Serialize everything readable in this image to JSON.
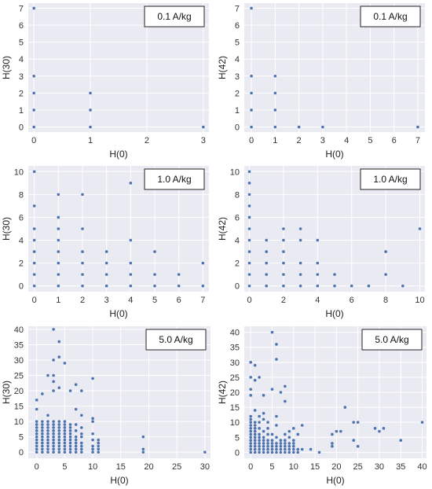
{
  "chart_data": [
    {
      "type": "scatter",
      "title": "0.1 A/kg",
      "xlabel": "H(0)",
      "ylabel": "H(30)",
      "xlim": [
        -0.1,
        3.1
      ],
      "ylim": [
        -0.3,
        7.3
      ],
      "xticks": [
        0,
        1,
        2,
        3
      ],
      "yticks": [
        0,
        1,
        2,
        3,
        4,
        5,
        6,
        7
      ],
      "grid": true,
      "legend_position": "top-right",
      "points": [
        [
          0,
          0
        ],
        [
          0,
          1
        ],
        [
          0,
          2
        ],
        [
          0,
          3
        ],
        [
          0,
          7
        ],
        [
          1,
          0
        ],
        [
          1,
          1
        ],
        [
          1,
          2
        ],
        [
          3,
          0
        ]
      ]
    },
    {
      "type": "scatter",
      "title": "0.1 A/kg",
      "xlabel": "H(0)",
      "ylabel": "H(42)",
      "xlim": [
        -0.3,
        7.3
      ],
      "ylim": [
        -0.3,
        7.3
      ],
      "xticks": [
        0,
        1,
        2,
        3,
        4,
        5,
        6,
        7
      ],
      "yticks": [
        0,
        1,
        2,
        3,
        4,
        5,
        6,
        7
      ],
      "grid": true,
      "legend_position": "top-right",
      "points": [
        [
          0,
          0
        ],
        [
          0,
          1
        ],
        [
          0,
          2
        ],
        [
          0,
          3
        ],
        [
          0,
          7
        ],
        [
          1,
          0
        ],
        [
          1,
          1
        ],
        [
          1,
          2
        ],
        [
          1,
          3
        ],
        [
          2,
          0
        ],
        [
          3,
          0
        ],
        [
          7,
          0
        ]
      ]
    },
    {
      "type": "scatter",
      "title": "1.0 A/kg",
      "xlabel": "H(0)",
      "ylabel": "H(30)",
      "xlim": [
        -0.25,
        7.25
      ],
      "ylim": [
        -0.5,
        10.5
      ],
      "xticks": [
        0,
        1,
        2,
        3,
        4,
        5,
        6,
        7
      ],
      "yticks": [
        0,
        2,
        4,
        6,
        8,
        10
      ],
      "grid": true,
      "legend_position": "top-right",
      "points": [
        [
          0,
          0
        ],
        [
          0,
          1
        ],
        [
          0,
          2
        ],
        [
          0,
          3
        ],
        [
          0,
          4
        ],
        [
          0,
          5
        ],
        [
          0,
          7
        ],
        [
          0,
          10
        ],
        [
          1,
          0
        ],
        [
          1,
          1
        ],
        [
          1,
          2
        ],
        [
          1,
          3
        ],
        [
          1,
          4
        ],
        [
          1,
          5
        ],
        [
          1,
          6
        ],
        [
          1,
          8
        ],
        [
          2,
          0
        ],
        [
          2,
          1
        ],
        [
          2,
          2
        ],
        [
          2,
          3
        ],
        [
          2,
          5
        ],
        [
          2,
          8
        ],
        [
          3,
          0
        ],
        [
          3,
          1
        ],
        [
          3,
          2
        ],
        [
          3,
          3
        ],
        [
          4,
          0
        ],
        [
          4,
          1
        ],
        [
          4,
          2
        ],
        [
          4,
          4
        ],
        [
          4,
          9
        ],
        [
          5,
          0
        ],
        [
          5,
          1
        ],
        [
          5,
          3
        ],
        [
          6,
          0
        ],
        [
          6,
          1
        ],
        [
          7,
          0
        ],
        [
          7,
          2
        ]
      ]
    },
    {
      "type": "scatter",
      "title": "1.0 A/kg",
      "xlabel": "H(0)",
      "ylabel": "H(42)",
      "xlim": [
        -0.3,
        10.3
      ],
      "ylim": [
        -0.5,
        10.5
      ],
      "xticks": [
        0,
        2,
        4,
        6,
        8,
        10
      ],
      "yticks": [
        0,
        2,
        4,
        6,
        8,
        10
      ],
      "grid": true,
      "legend_position": "top-right",
      "points": [
        [
          0,
          0
        ],
        [
          0,
          1
        ],
        [
          0,
          2
        ],
        [
          0,
          3
        ],
        [
          0,
          4
        ],
        [
          0,
          5
        ],
        [
          0,
          6
        ],
        [
          0,
          7
        ],
        [
          0,
          8
        ],
        [
          0,
          9
        ],
        [
          0,
          10
        ],
        [
          1,
          0
        ],
        [
          1,
          1
        ],
        [
          1,
          2
        ],
        [
          1,
          3
        ],
        [
          1,
          4
        ],
        [
          2,
          0
        ],
        [
          2,
          1
        ],
        [
          2,
          2
        ],
        [
          2,
          3
        ],
        [
          2,
          4
        ],
        [
          2,
          5
        ],
        [
          3,
          0
        ],
        [
          3,
          1
        ],
        [
          3,
          2
        ],
        [
          3,
          4
        ],
        [
          3,
          5
        ],
        [
          4,
          0
        ],
        [
          4,
          1
        ],
        [
          4,
          2
        ],
        [
          4,
          4
        ],
        [
          5,
          0
        ],
        [
          5,
          1
        ],
        [
          6,
          0
        ],
        [
          7,
          0
        ],
        [
          8,
          1
        ],
        [
          8,
          3
        ],
        [
          9,
          0
        ],
        [
          10,
          5
        ]
      ]
    },
    {
      "type": "scatter",
      "title": "5.0 A/kg",
      "xlabel": "H(0)",
      "ylabel": "H(30)",
      "xlim": [
        -1.5,
        31
      ],
      "ylim": [
        -2,
        41
      ],
      "xticks": [
        0,
        5,
        10,
        15,
        20,
        25,
        30
      ],
      "yticks": [
        0,
        5,
        10,
        15,
        20,
        25,
        30,
        35,
        40
      ],
      "grid": true,
      "legend_position": "top-right",
      "points": [
        [
          0,
          0
        ],
        [
          0,
          1
        ],
        [
          0,
          2
        ],
        [
          0,
          3
        ],
        [
          0,
          4
        ],
        [
          0,
          5
        ],
        [
          0,
          6
        ],
        [
          0,
          7
        ],
        [
          0,
          8
        ],
        [
          0,
          9
        ],
        [
          0,
          10
        ],
        [
          0,
          14
        ],
        [
          0,
          17
        ],
        [
          1,
          0
        ],
        [
          1,
          1
        ],
        [
          1,
          2
        ],
        [
          1,
          3
        ],
        [
          1,
          4
        ],
        [
          1,
          5
        ],
        [
          1,
          6
        ],
        [
          1,
          7
        ],
        [
          1,
          8
        ],
        [
          1,
          9
        ],
        [
          1,
          10
        ],
        [
          1,
          19
        ],
        [
          2,
          0
        ],
        [
          2,
          1
        ],
        [
          2,
          2
        ],
        [
          2,
          3
        ],
        [
          2,
          4
        ],
        [
          2,
          5
        ],
        [
          2,
          6
        ],
        [
          2,
          7
        ],
        [
          2,
          8
        ],
        [
          2,
          9
        ],
        [
          2,
          10
        ],
        [
          2,
          12
        ],
        [
          2,
          25
        ],
        [
          3,
          0
        ],
        [
          3,
          1
        ],
        [
          3,
          2
        ],
        [
          3,
          3
        ],
        [
          3,
          4
        ],
        [
          3,
          5
        ],
        [
          3,
          6
        ],
        [
          3,
          7
        ],
        [
          3,
          8
        ],
        [
          3,
          9
        ],
        [
          3,
          10
        ],
        [
          3,
          20
        ],
        [
          3,
          23
        ],
        [
          3,
          25
        ],
        [
          3,
          30
        ],
        [
          3,
          40
        ],
        [
          4,
          0
        ],
        [
          4,
          1
        ],
        [
          4,
          2
        ],
        [
          4,
          3
        ],
        [
          4,
          4
        ],
        [
          4,
          5
        ],
        [
          4,
          6
        ],
        [
          4,
          7
        ],
        [
          4,
          8
        ],
        [
          4,
          9
        ],
        [
          4,
          10
        ],
        [
          4,
          21
        ],
        [
          4,
          31
        ],
        [
          4,
          36
        ],
        [
          5,
          0
        ],
        [
          5,
          1
        ],
        [
          5,
          2
        ],
        [
          5,
          3
        ],
        [
          5,
          4
        ],
        [
          5,
          5
        ],
        [
          5,
          6
        ],
        [
          5,
          7
        ],
        [
          5,
          8
        ],
        [
          5,
          9
        ],
        [
          5,
          10
        ],
        [
          5,
          29
        ],
        [
          6,
          0
        ],
        [
          6,
          1
        ],
        [
          6,
          2
        ],
        [
          6,
          3
        ],
        [
          6,
          4
        ],
        [
          6,
          5
        ],
        [
          6,
          6
        ],
        [
          6,
          7
        ],
        [
          6,
          8
        ],
        [
          6,
          9
        ],
        [
          6,
          20
        ],
        [
          7,
          0
        ],
        [
          7,
          1
        ],
        [
          7,
          2
        ],
        [
          7,
          3
        ],
        [
          7,
          4
        ],
        [
          7,
          5
        ],
        [
          7,
          7
        ],
        [
          7,
          9
        ],
        [
          7,
          14
        ],
        [
          7,
          22
        ],
        [
          8,
          0
        ],
        [
          8,
          1
        ],
        [
          8,
          2
        ],
        [
          8,
          3
        ],
        [
          8,
          5
        ],
        [
          8,
          6
        ],
        [
          8,
          8
        ],
        [
          8,
          12
        ],
        [
          8,
          20
        ],
        [
          10,
          0
        ],
        [
          10,
          1
        ],
        [
          10,
          2
        ],
        [
          10,
          4
        ],
        [
          10,
          6
        ],
        [
          10,
          10
        ],
        [
          10,
          11
        ],
        [
          10,
          24
        ],
        [
          11,
          0
        ],
        [
          11,
          1
        ],
        [
          11,
          2
        ],
        [
          11,
          3
        ],
        [
          11,
          4
        ],
        [
          19,
          0
        ],
        [
          19,
          1
        ],
        [
          19,
          5
        ],
        [
          30,
          0
        ]
      ]
    },
    {
      "type": "scatter",
      "title": "5.0 A/kg",
      "xlabel": "H(0)",
      "ylabel": "H(42)",
      "xlim": [
        -1.5,
        41
      ],
      "ylim": [
        -2,
        42
      ],
      "xticks": [
        0,
        5,
        10,
        15,
        20,
        25,
        30,
        35,
        40
      ],
      "yticks": [
        0,
        5,
        10,
        15,
        20,
        25,
        30,
        35,
        40
      ],
      "grid": true,
      "legend_position": "top-right",
      "points": [
        [
          0,
          0
        ],
        [
          0,
          1
        ],
        [
          0,
          2
        ],
        [
          0,
          3
        ],
        [
          0,
          4
        ],
        [
          0,
          5
        ],
        [
          0,
          6
        ],
        [
          0,
          7
        ],
        [
          0,
          8
        ],
        [
          0,
          9
        ],
        [
          0,
          10
        ],
        [
          0,
          11
        ],
        [
          0,
          12
        ],
        [
          0,
          19
        ],
        [
          0,
          21
        ],
        [
          0,
          25
        ],
        [
          0,
          30
        ],
        [
          1,
          0
        ],
        [
          1,
          1
        ],
        [
          1,
          2
        ],
        [
          1,
          3
        ],
        [
          1,
          4
        ],
        [
          1,
          5
        ],
        [
          1,
          6
        ],
        [
          1,
          7
        ],
        [
          1,
          8
        ],
        [
          1,
          9
        ],
        [
          1,
          10
        ],
        [
          1,
          14
        ],
        [
          1,
          24
        ],
        [
          1,
          29
        ],
        [
          2,
          0
        ],
        [
          2,
          1
        ],
        [
          2,
          2
        ],
        [
          2,
          3
        ],
        [
          2,
          4
        ],
        [
          2,
          5
        ],
        [
          2,
          6
        ],
        [
          2,
          8
        ],
        [
          2,
          10
        ],
        [
          2,
          12
        ],
        [
          2,
          25
        ],
        [
          3,
          0
        ],
        [
          3,
          1
        ],
        [
          3,
          2
        ],
        [
          3,
          3
        ],
        [
          3,
          4
        ],
        [
          3,
          5
        ],
        [
          3,
          7
        ],
        [
          3,
          11
        ],
        [
          3,
          13
        ],
        [
          3,
          19
        ],
        [
          4,
          0
        ],
        [
          4,
          1
        ],
        [
          4,
          2
        ],
        [
          4,
          3
        ],
        [
          4,
          4
        ],
        [
          4,
          6
        ],
        [
          4,
          8
        ],
        [
          4,
          10
        ],
        [
          5,
          0
        ],
        [
          5,
          1
        ],
        [
          5,
          2
        ],
        [
          5,
          3
        ],
        [
          5,
          4
        ],
        [
          5,
          6
        ],
        [
          5,
          21
        ],
        [
          5,
          40
        ],
        [
          6,
          0
        ],
        [
          6,
          1
        ],
        [
          6,
          2
        ],
        [
          6,
          3
        ],
        [
          6,
          5
        ],
        [
          6,
          9
        ],
        [
          6,
          12
        ],
        [
          6,
          31
        ],
        [
          6,
          36
        ],
        [
          7,
          0
        ],
        [
          7,
          1
        ],
        [
          7,
          2
        ],
        [
          7,
          3
        ],
        [
          7,
          4
        ],
        [
          7,
          20
        ],
        [
          8,
          0
        ],
        [
          8,
          1
        ],
        [
          8,
          2
        ],
        [
          8,
          3
        ],
        [
          8,
          4
        ],
        [
          8,
          6
        ],
        [
          8,
          17
        ],
        [
          8,
          22
        ],
        [
          9,
          0
        ],
        [
          9,
          1
        ],
        [
          9,
          2
        ],
        [
          9,
          3
        ],
        [
          9,
          5
        ],
        [
          9,
          7
        ],
        [
          10,
          0
        ],
        [
          10,
          1
        ],
        [
          10,
          2
        ],
        [
          10,
          3
        ],
        [
          10,
          4
        ],
        [
          10,
          8
        ],
        [
          11,
          0
        ],
        [
          11,
          1
        ],
        [
          11,
          6
        ],
        [
          12,
          1
        ],
        [
          12,
          9
        ],
        [
          14,
          1
        ],
        [
          16,
          0
        ],
        [
          19,
          2
        ],
        [
          19,
          3
        ],
        [
          19,
          6
        ],
        [
          20,
          7
        ],
        [
          21,
          7
        ],
        [
          22,
          15
        ],
        [
          24,
          4
        ],
        [
          24,
          10
        ],
        [
          25,
          10
        ],
        [
          25,
          2
        ],
        [
          29,
          8
        ],
        [
          30,
          7
        ],
        [
          31,
          8
        ],
        [
          35,
          4
        ],
        [
          40,
          10
        ]
      ]
    }
  ]
}
